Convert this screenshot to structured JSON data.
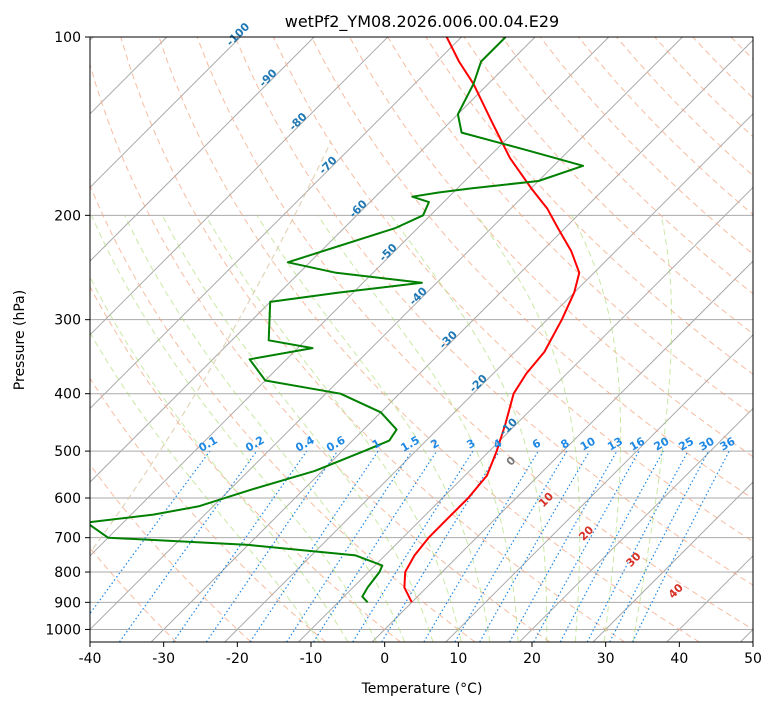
{
  "chart_data": {
    "type": "skew-t log-p diagram",
    "title": "wetPf2_YM08.2026.006.00.04.E29",
    "xlabel": "Temperature (°C)",
    "ylabel": "Pressure (hPa)",
    "xlim": [
      -40,
      50
    ],
    "ylim_hpa": [
      1050,
      100
    ],
    "x_ticks": [
      "-40",
      "-30",
      "-20",
      "-10",
      "0",
      "10",
      "20",
      "30",
      "40",
      "50"
    ],
    "x_tick_values": [
      -40,
      -30,
      -20,
      -10,
      0,
      10,
      20,
      30,
      40,
      50
    ],
    "y_ticks": [
      "100",
      "200",
      "300",
      "400",
      "500",
      "600",
      "700",
      "800",
      "900",
      "1000"
    ],
    "y_tick_values": [
      100,
      200,
      300,
      400,
      500,
      600,
      700,
      800,
      900,
      1000
    ],
    "colors": {
      "temperature": "#ff0000",
      "dewpoint": "#008000",
      "isotherm": "#aaaaaa",
      "dry_adiabat": "#f4a582",
      "moist_adiabat": "#a6d96a",
      "mixing_ratio": "#1e88e5",
      "isotherm_label": "#1f78b4",
      "dry_adiabat_label": "#d73027",
      "theta_e": "#d9c9a8"
    },
    "isotherm_labels": [
      {
        "text": "-100",
        "value": -100
      },
      {
        "text": "-90",
        "value": -90
      },
      {
        "text": "-80",
        "value": -80
      },
      {
        "text": "-70",
        "value": -70
      },
      {
        "text": "-60",
        "value": -60
      },
      {
        "text": "-50",
        "value": -50
      },
      {
        "text": "-40",
        "value": -40
      },
      {
        "text": "-30",
        "value": -30
      },
      {
        "text": "-20",
        "value": -20
      },
      {
        "text": "-10",
        "value": -10
      }
    ],
    "mixing_ratio_labels": [
      "0.1",
      "0.2",
      "0.4",
      "0.6",
      "1",
      "1.5",
      "2",
      "3",
      "4",
      "6",
      "8",
      "10",
      "13",
      "16",
      "20",
      "25",
      "30",
      "36"
    ],
    "mixing_ratio_values": [
      0.1,
      0.2,
      0.4,
      0.6,
      1,
      1.5,
      2,
      3,
      4,
      6,
      8,
      10,
      13,
      16,
      20,
      25,
      30,
      36
    ],
    "surface_isotherm_labels": [
      {
        "text": "0",
        "value": 0,
        "p": 525
      },
      {
        "text": "10",
        "value": 10,
        "p": 610
      },
      {
        "text": "20",
        "value": 20,
        "p": 695
      },
      {
        "text": "30",
        "value": 30,
        "p": 770
      },
      {
        "text": "40",
        "value": 40,
        "p": 870
      }
    ],
    "series": [
      {
        "name": "temperature",
        "points": [
          {
            "p": 900,
            "t": 0
          },
          {
            "p": 850,
            "t": -3
          },
          {
            "p": 800,
            "t": -5
          },
          {
            "p": 750,
            "t": -6
          },
          {
            "p": 700,
            "t": -6.5
          },
          {
            "p": 650,
            "t": -6.5
          },
          {
            "p": 600,
            "t": -6.5
          },
          {
            "p": 550,
            "t": -7
          },
          {
            "p": 500,
            "t": -9
          },
          {
            "p": 450,
            "t": -11.5
          },
          {
            "p": 400,
            "t": -14.5
          },
          {
            "p": 370,
            "t": -15.5
          },
          {
            "p": 340,
            "t": -16
          },
          {
            "p": 300,
            "t": -18
          },
          {
            "p": 270,
            "t": -20
          },
          {
            "p": 250,
            "t": -22
          },
          {
            "p": 230,
            "t": -26
          },
          {
            "p": 210,
            "t": -31
          },
          {
            "p": 195,
            "t": -35
          },
          {
            "p": 180,
            "t": -40
          },
          {
            "p": 160,
            "t": -47
          },
          {
            "p": 140,
            "t": -54
          },
          {
            "p": 120,
            "t": -62
          },
          {
            "p": 110,
            "t": -67
          },
          {
            "p": 100,
            "t": -72
          }
        ]
      },
      {
        "name": "dewpoint",
        "points": [
          {
            "p": 900,
            "t": -6
          },
          {
            "p": 880,
            "t": -7.5
          },
          {
            "p": 850,
            "t": -8
          },
          {
            "p": 800,
            "t": -8.5
          },
          {
            "p": 780,
            "t": -9
          },
          {
            "p": 750,
            "t": -14
          },
          {
            "p": 720,
            "t": -30
          },
          {
            "p": 700,
            "t": -50
          },
          {
            "p": 660,
            "t": -55
          },
          {
            "p": 640,
            "t": -47
          },
          {
            "p": 620,
            "t": -42
          },
          {
            "p": 580,
            "t": -37
          },
          {
            "p": 540,
            "t": -31
          },
          {
            "p": 500,
            "t": -27
          },
          {
            "p": 480,
            "t": -25
          },
          {
            "p": 460,
            "t": -25.5
          },
          {
            "p": 430,
            "t": -30
          },
          {
            "p": 400,
            "t": -38
          },
          {
            "p": 380,
            "t": -50
          },
          {
            "p": 350,
            "t": -55
          },
          {
            "p": 335,
            "t": -48
          },
          {
            "p": 325,
            "t": -55
          },
          {
            "p": 280,
            "t": -60
          },
          {
            "p": 270,
            "t": -52
          },
          {
            "p": 260,
            "t": -42
          },
          {
            "p": 250,
            "t": -55
          },
          {
            "p": 240,
            "t": -63
          },
          {
            "p": 210,
            "t": -53
          },
          {
            "p": 200,
            "t": -51
          },
          {
            "p": 190,
            "t": -52
          },
          {
            "p": 186,
            "t": -55
          },
          {
            "p": 183,
            "t": -52
          },
          {
            "p": 180,
            "t": -48
          },
          {
            "p": 175,
            "t": -40
          },
          {
            "p": 165,
            "t": -36
          },
          {
            "p": 155,
            "t": -46
          },
          {
            "p": 145,
            "t": -57
          },
          {
            "p": 135,
            "t": -60
          },
          {
            "p": 120,
            "t": -62
          },
          {
            "p": 110,
            "t": -64
          },
          {
            "p": 100,
            "t": -64
          }
        ]
      }
    ]
  }
}
